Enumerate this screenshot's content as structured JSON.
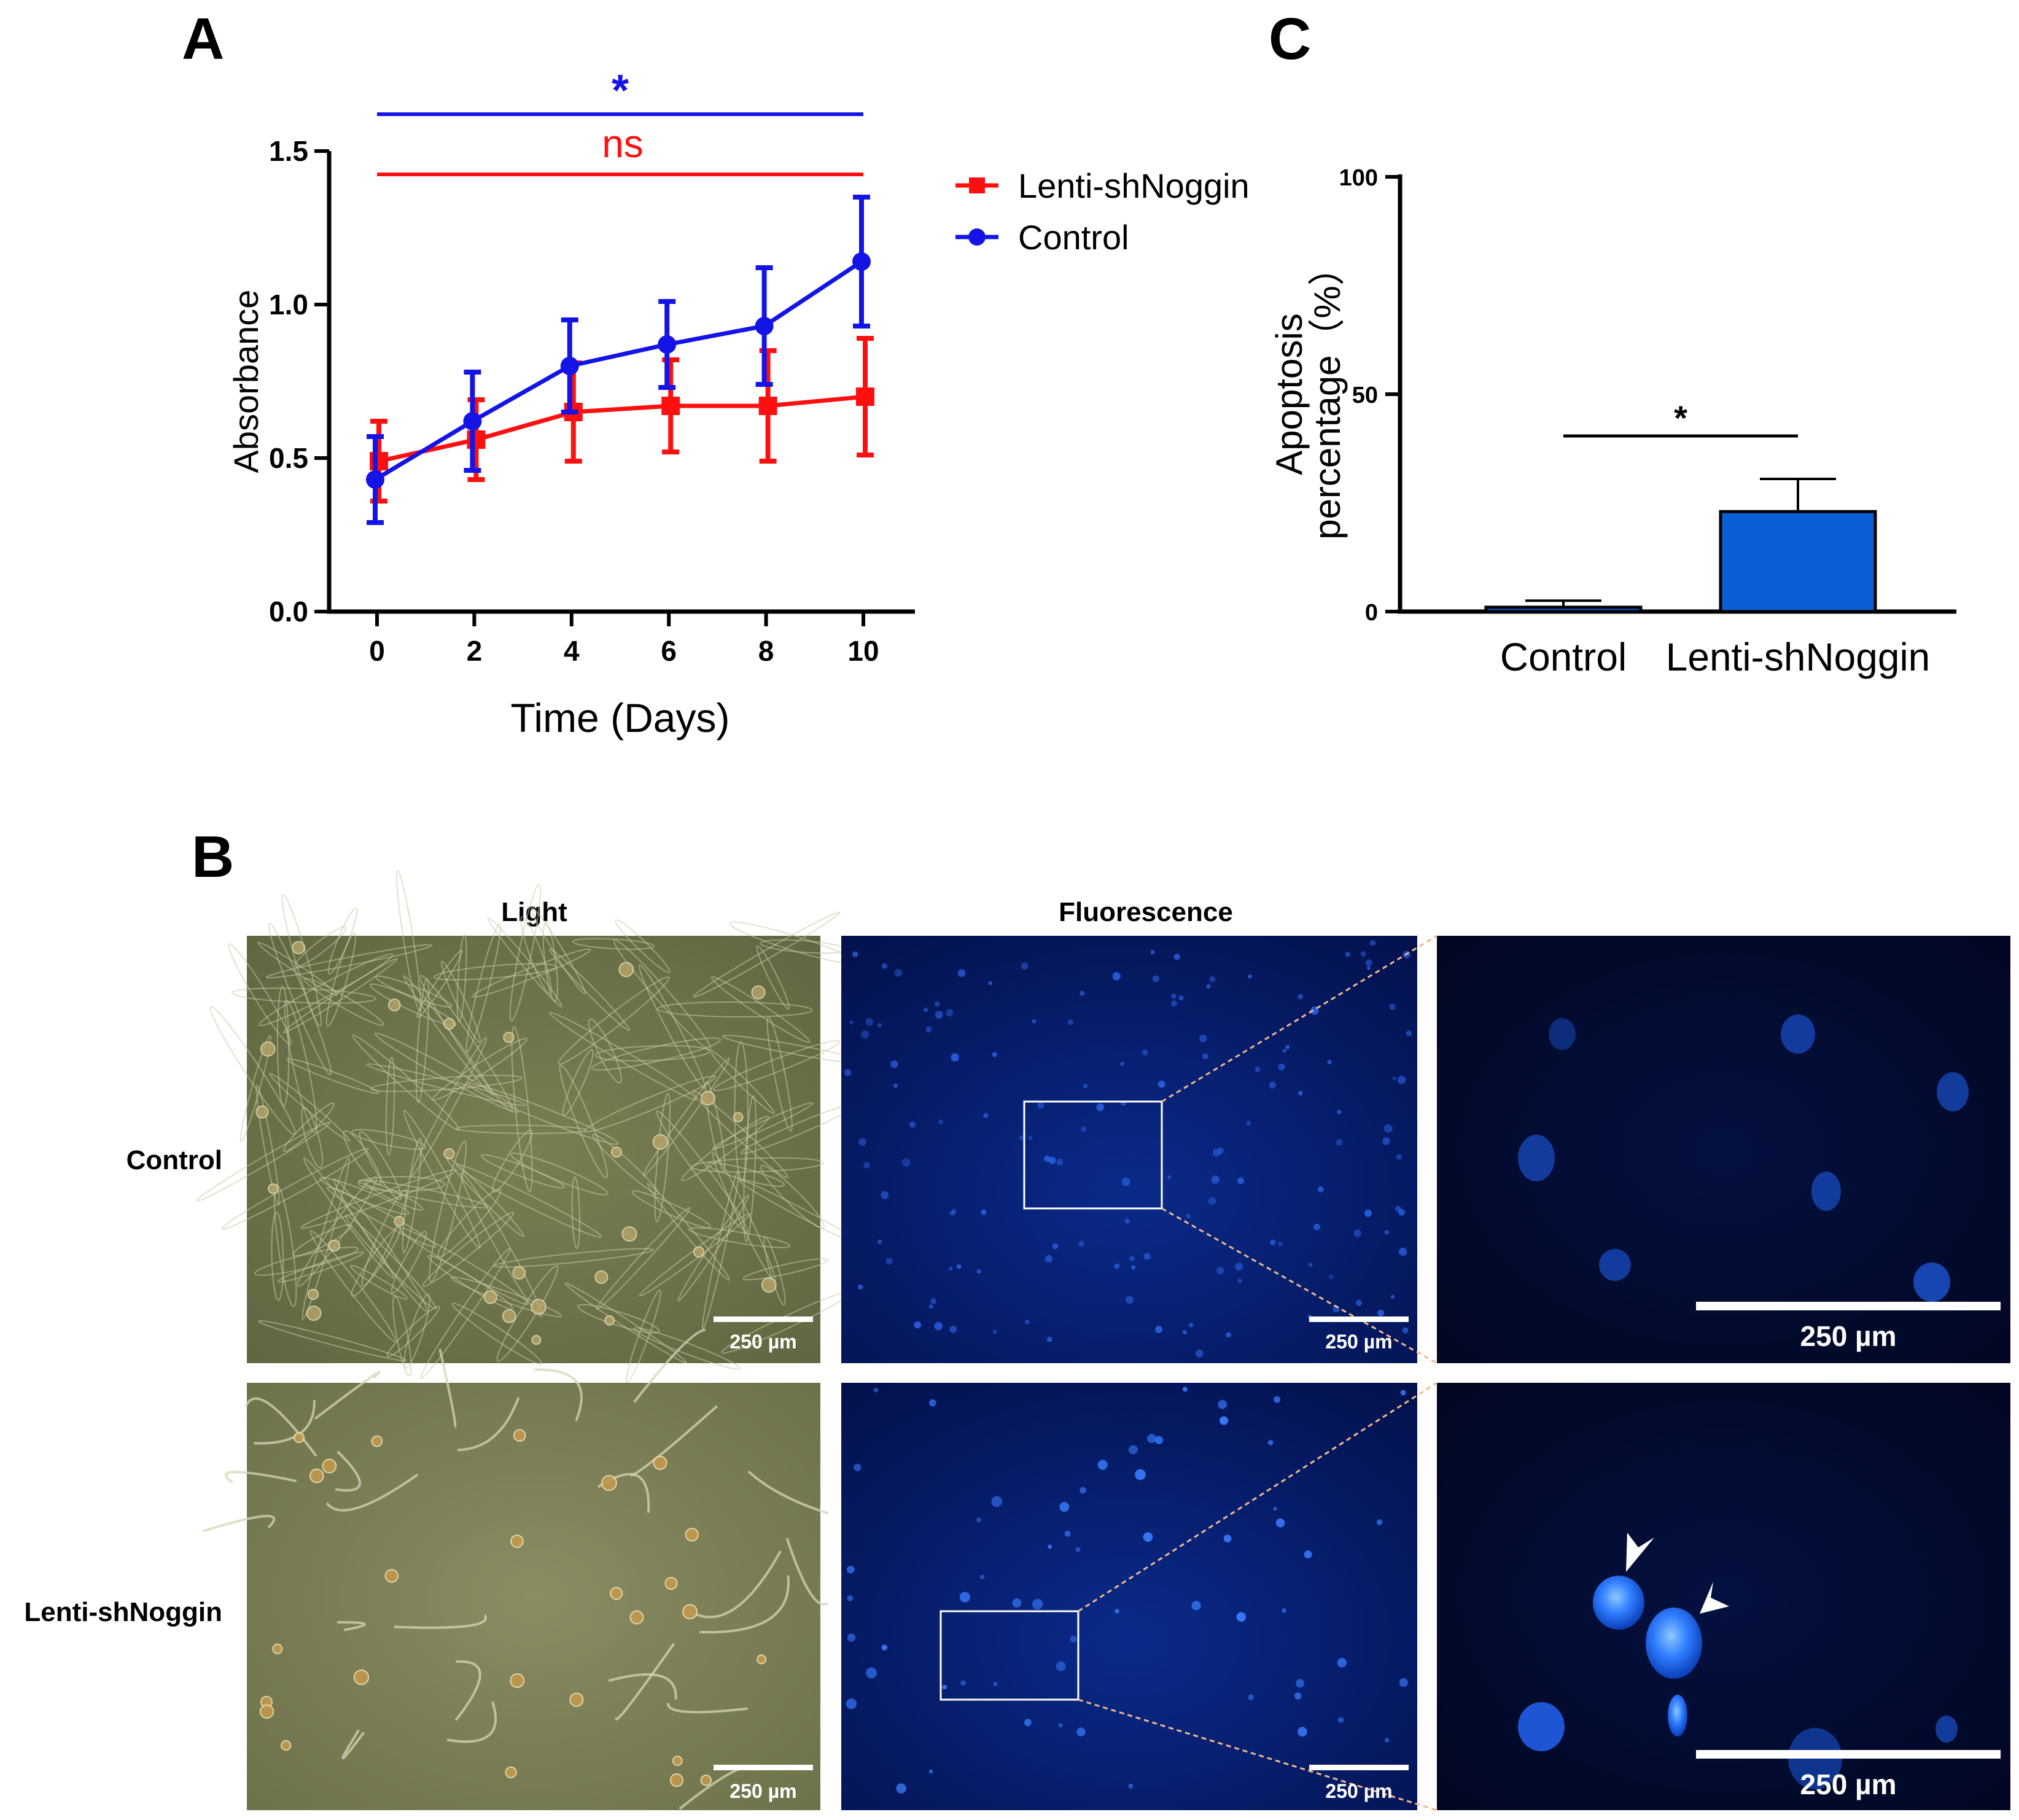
{
  "panels": {
    "a": "A",
    "b": "B",
    "c": "C"
  },
  "colors": {
    "lenti": "#ff1010",
    "control": "#1414e6",
    "bar_fill": "#0a5fd6",
    "light_bg": "#6f7648",
    "fluor_bg": "#04124a",
    "zoom_bg": "#010826",
    "nucleus": "#1f6cff"
  },
  "panel_a": {
    "significance": [
      {
        "label": "*",
        "series": "Control"
      },
      {
        "label": "ns",
        "series": "Lenti-shNoggin"
      }
    ]
  },
  "panel_c": {
    "significance": "*"
  },
  "chart_data": [
    {
      "type": "line",
      "title": "",
      "xlabel": "Time (Days)",
      "ylabel": "Absorbance",
      "x": [
        0,
        2,
        4,
        6,
        8,
        10
      ],
      "xticks": [
        "0",
        "2",
        "4",
        "6",
        "8",
        "10"
      ],
      "yticks": [
        "0.0",
        "0.5",
        "1.0",
        "1.5"
      ],
      "ylim": [
        0,
        1.5
      ],
      "legend": "top-right",
      "grid": false,
      "series": [
        {
          "name": "Lenti-shNoggin",
          "marker": "square",
          "color": "#ff1010",
          "values": [
            0.49,
            0.56,
            0.65,
            0.67,
            0.67,
            0.7
          ],
          "errors": [
            0.13,
            0.13,
            0.16,
            0.15,
            0.18,
            0.19
          ]
        },
        {
          "name": "Control",
          "marker": "circle",
          "color": "#1414e6",
          "values": [
            0.43,
            0.62,
            0.8,
            0.87,
            0.93,
            1.14
          ],
          "errors": [
            0.14,
            0.16,
            0.15,
            0.14,
            0.19,
            0.21
          ]
        }
      ]
    },
    {
      "type": "bar",
      "title": "",
      "xlabel": "",
      "ylabel": "Apoptosis percentage (%)",
      "ylabel_lines": [
        "Apoptosis",
        "percentage（%）"
      ],
      "categories": [
        "Control",
        "Lenti-shNoggin"
      ],
      "values": [
        1,
        23
      ],
      "errors": [
        1.5,
        7.5
      ],
      "yticks": [
        "0",
        "50",
        "100"
      ],
      "ylim": [
        0,
        100
      ],
      "grid": false
    }
  ],
  "panel_b": {
    "column_labels": [
      "Light",
      "Fluorescence"
    ],
    "row_labels": [
      "Control",
      "Lenti-shNoggin"
    ],
    "scale_bar": "250 µm"
  }
}
